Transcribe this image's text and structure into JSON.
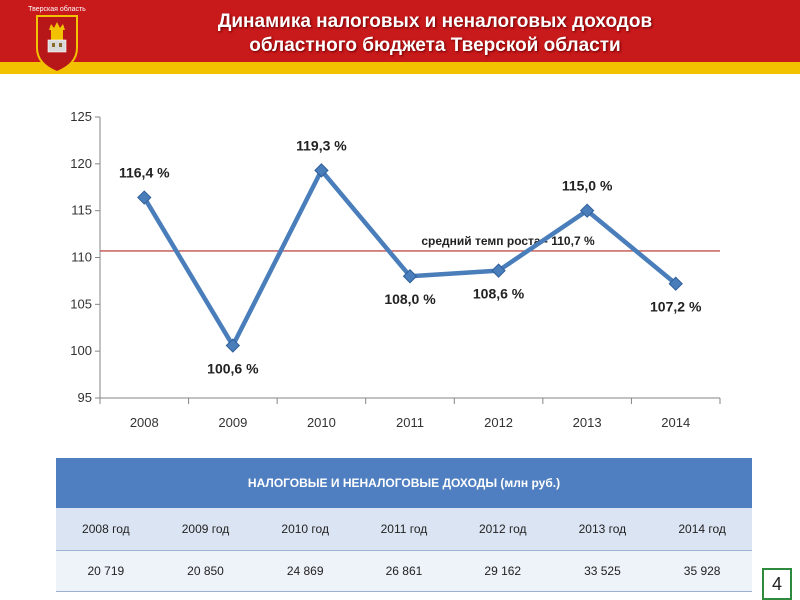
{
  "header": {
    "region_label": "Тверская область",
    "title_line1": "Динамика налоговых и неналоговых доходов",
    "title_line2": "областного бюджета Тверской области"
  },
  "chart_data": {
    "type": "line",
    "categories": [
      "2008",
      "2009",
      "2010",
      "2011",
      "2012",
      "2013",
      "2014"
    ],
    "series": [
      {
        "values": [
          116.4,
          100.6,
          119.3,
          108.0,
          108.6,
          115.0,
          107.2
        ],
        "labels": [
          "116,4 %",
          "100,6 %",
          "119,3 %",
          "108,0 %",
          "108,6 %",
          "115,0 %",
          "107,2 %"
        ],
        "color": "#4a7ebb"
      }
    ],
    "ylim": [
      95,
      125
    ],
    "yticks": [
      95,
      100,
      105,
      110,
      115,
      120,
      125
    ],
    "grid": false,
    "reference_line": {
      "value": 110.7,
      "label": "средний темп роста - 110,7 %",
      "color": "#c0504d"
    }
  },
  "table": {
    "title": "НАЛОГОВЫЕ И НЕНАЛОГОВЫЕ ДОХОДЫ (млн руб.)",
    "years": [
      "2008 год",
      "2009 год",
      "2010 год",
      "2011 год",
      "2012 год",
      "2013 год",
      "2014 год"
    ],
    "values": [
      "20 719",
      "20 850",
      "24 869",
      "26 861",
      "29 162",
      "33 525",
      "35 928"
    ]
  },
  "page_number": "4",
  "colors": {
    "header_red": "#c8191b",
    "header_yellow": "#f2c200",
    "table_header_blue": "#4f7fc0"
  }
}
